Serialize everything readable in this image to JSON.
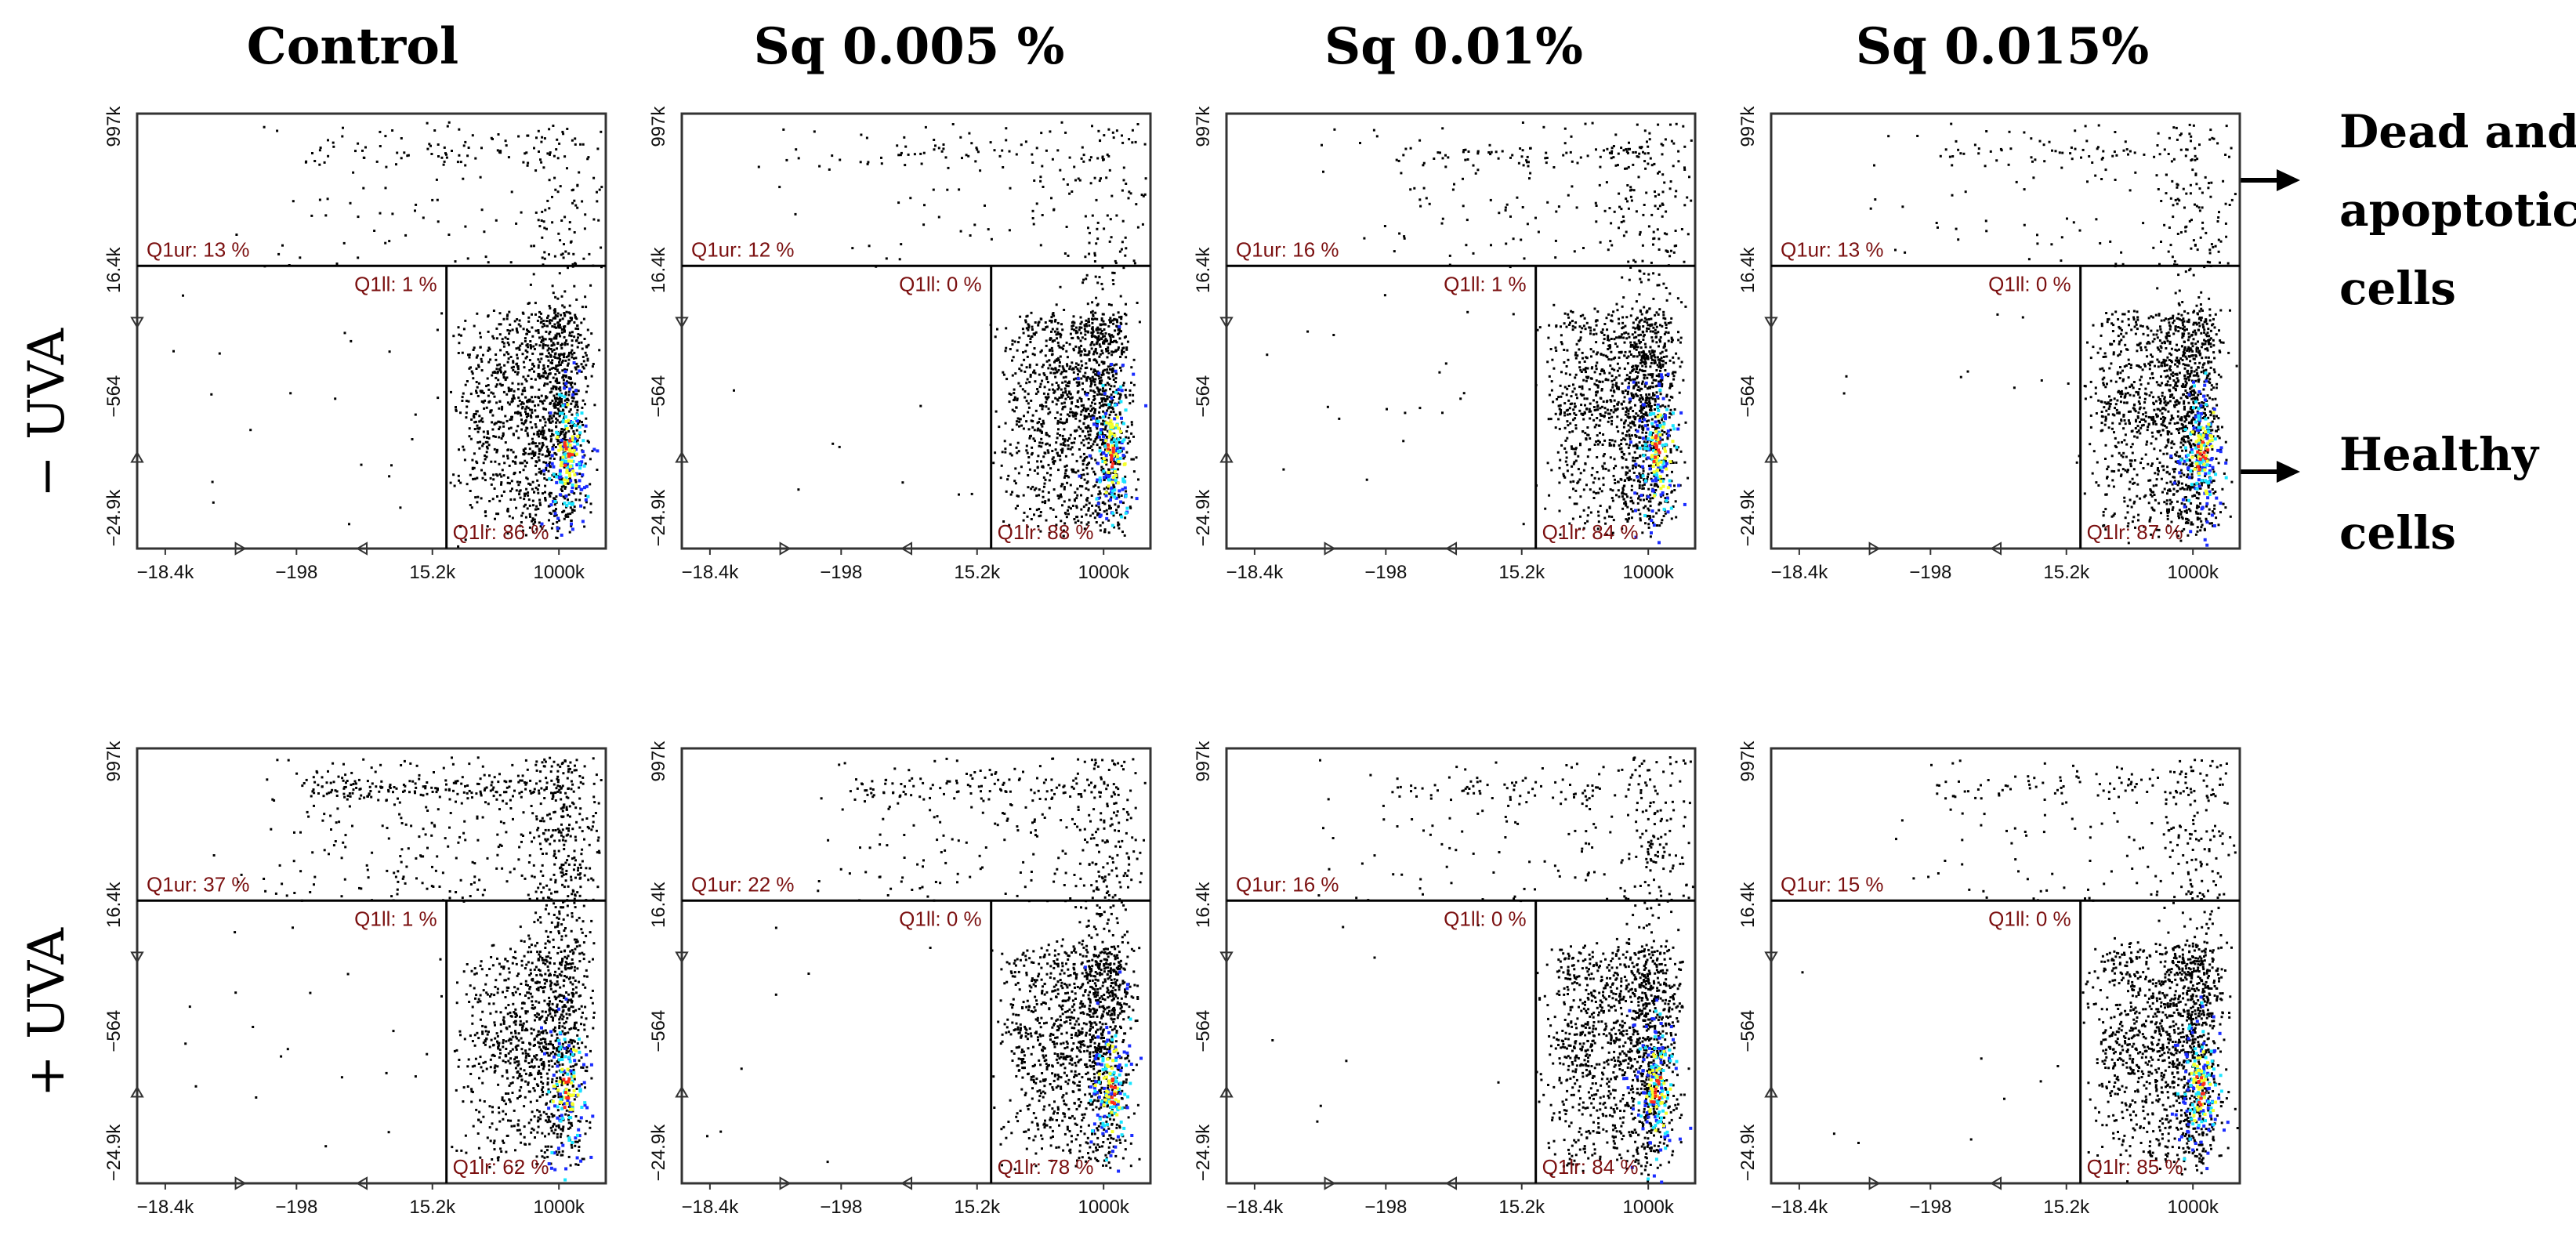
{
  "columns": [
    "Control",
    "Sq 0.005 %",
    "Sq 0.01%",
    "Sq 0.015%"
  ],
  "rows": [
    "− UVA",
    "+ UVA"
  ],
  "annotations": {
    "dead": [
      "Dead and",
      "apoptotic",
      "cells"
    ],
    "healthy": [
      "Healthy",
      "cells"
    ]
  },
  "colors": {
    "quadrant_label": "#7b1010",
    "axis": "#333333",
    "dots": "#000000",
    "density_high": "#ff2b1a",
    "density_mid": "#f5ff2a",
    "density_low": "#19e5ff",
    "density_edge": "#1a2cff"
  },
  "chart_data": [
    {
      "type": "scatter",
      "row": "− UVA",
      "column": "Control",
      "x_ticks": [
        "−18.4k",
        "−198",
        "15.2k",
        "1000k"
      ],
      "y_ticks": [
        "997k",
        "16.4k",
        "−564",
        "−24.9k"
      ],
      "quadrants": {
        "ur": "Q1ur: 13 %",
        "ll": "Q1ll: 1 %",
        "lr": "Q1lr: 86 %"
      },
      "values": {
        "ur": 13,
        "ll": 1,
        "lr": 86
      }
    },
    {
      "type": "scatter",
      "row": "− UVA",
      "column": "Sq 0.005 %",
      "x_ticks": [
        "−18.4k",
        "−198",
        "15.2k",
        "1000k"
      ],
      "y_ticks": [
        "997k",
        "16.4k",
        "−564",
        "−24.9k"
      ],
      "quadrants": {
        "ur": "Q1ur: 12 %",
        "ll": "Q1ll: 0 %",
        "lr": "Q1lr: 88 %"
      },
      "values": {
        "ur": 12,
        "ll": 0,
        "lr": 88
      }
    },
    {
      "type": "scatter",
      "row": "− UVA",
      "column": "Sq 0.01%",
      "x_ticks": [
        "−18.4k",
        "−198",
        "15.2k",
        "1000k"
      ],
      "y_ticks": [
        "997k",
        "16.4k",
        "−564",
        "−24.9k"
      ],
      "quadrants": {
        "ur": "Q1ur: 16 %",
        "ll": "Q1ll: 1 %",
        "lr": "Q1lr: 84 %"
      },
      "values": {
        "ur": 16,
        "ll": 1,
        "lr": 84
      }
    },
    {
      "type": "scatter",
      "row": "− UVA",
      "column": "Sq 0.015%",
      "x_ticks": [
        "−18.4k",
        "−198",
        "15.2k",
        "1000k"
      ],
      "y_ticks": [
        "997k",
        "16.4k",
        "−564",
        "−24.9k"
      ],
      "quadrants": {
        "ur": "Q1ur: 13 %",
        "ll": "Q1ll: 0 %",
        "lr": "Q1lr: 87 %"
      },
      "values": {
        "ur": 13,
        "ll": 0,
        "lr": 87
      }
    },
    {
      "type": "scatter",
      "row": "+ UVA",
      "column": "Control",
      "x_ticks": [
        "−18.4k",
        "−198",
        "15.2k",
        "1000k"
      ],
      "y_ticks": [
        "997k",
        "16.4k",
        "−564",
        "−24.9k"
      ],
      "quadrants": {
        "ur": "Q1ur: 37 %",
        "ll": "Q1ll: 1 %",
        "lr": "Q1lr: 62 %"
      },
      "values": {
        "ur": 37,
        "ll": 1,
        "lr": 62
      }
    },
    {
      "type": "scatter",
      "row": "+ UVA",
      "column": "Sq 0.005 %",
      "x_ticks": [
        "−18.4k",
        "−198",
        "15.2k",
        "1000k"
      ],
      "y_ticks": [
        "997k",
        "16.4k",
        "−564",
        "−24.9k"
      ],
      "quadrants": {
        "ur": "Q1ur: 22 %",
        "ll": "Q1ll: 0 %",
        "lr": "Q1lr: 78 %"
      },
      "values": {
        "ur": 22,
        "ll": 0,
        "lr": 78
      }
    },
    {
      "type": "scatter",
      "row": "+ UVA",
      "column": "Sq 0.01%",
      "x_ticks": [
        "−18.4k",
        "−198",
        "15.2k",
        "1000k"
      ],
      "y_ticks": [
        "997k",
        "16.4k",
        "−564",
        "−24.9k"
      ],
      "quadrants": {
        "ur": "Q1ur: 16 %",
        "ll": "Q1ll: 0 %",
        "lr": "Q1lr: 84 %"
      },
      "values": {
        "ur": 16,
        "ll": 0,
        "lr": 84
      }
    },
    {
      "type": "scatter",
      "row": "+ UVA",
      "column": "Sq 0.015%",
      "x_ticks": [
        "−18.4k",
        "−198",
        "15.2k",
        "1000k"
      ],
      "y_ticks": [
        "997k",
        "16.4k",
        "−564",
        "−24.9k"
      ],
      "quadrants": {
        "ur": "Q1ur: 15 %",
        "ll": "Q1ll: 0 %",
        "lr": "Q1lr: 85 %"
      },
      "values": {
        "ur": 15,
        "ll": 0,
        "lr": 85
      }
    }
  ]
}
